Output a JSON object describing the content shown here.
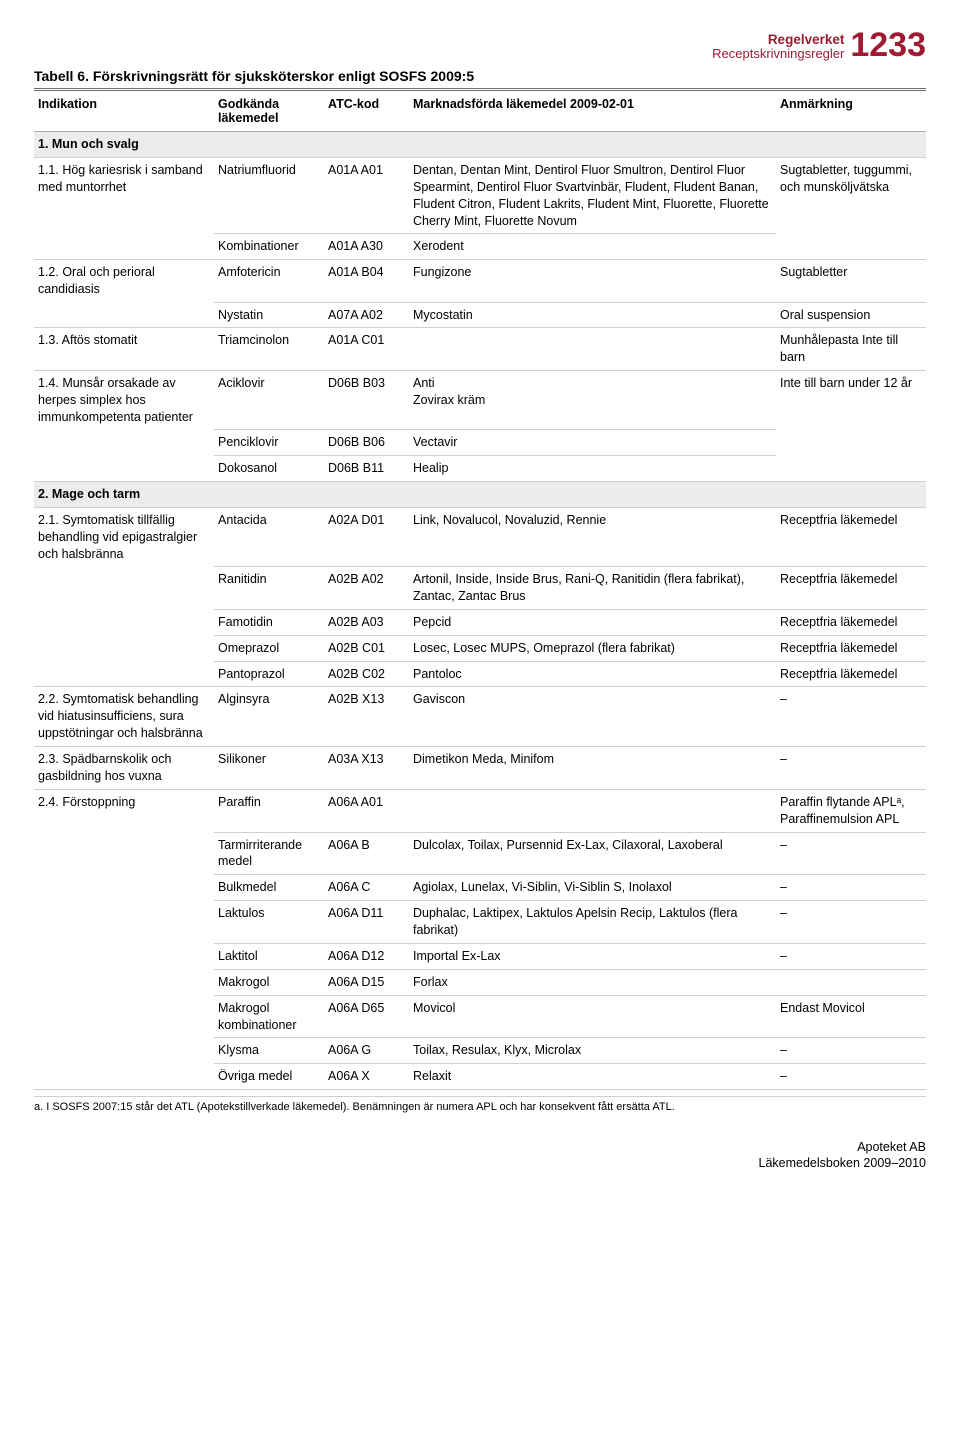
{
  "header": {
    "top": "Regelverket",
    "sub": "Receptskrivningsregler",
    "pageNumber": "1233"
  },
  "caption": "Tabell 6. Förskrivningsrätt för sjuksköterskor enligt SOSFS 2009:5",
  "columns": {
    "c1": "Indikation",
    "c2": "Godkända läkemedel",
    "c3": "ATC-kod",
    "c4": "Marknadsförda läkemedel 2009-02-01",
    "c5": "Anmärkning"
  },
  "rows": [
    {
      "type": "section",
      "label": "1. Mun och svalg"
    },
    {
      "type": "data",
      "spanStart": true,
      "ind": "1.1. Hög kariesrisk i samband med muntorrhet",
      "god": "Natriumfluorid",
      "atc": "A01A A01",
      "mark": "Dentan, Dentan Mint, Dentirol Fluor Smultron, Dentirol Fluor Spearmint, Dentirol Fluor Svartvinbär, Fludent, Fludent Banan, Fludent Citron, Fludent Lakrits, Fludent Mint, Fluorette, Fluorette Cherry Mint, Fluorette Novum",
      "anm": "Sugtabletter, tuggummi, och munsköljvätska",
      "anmSpanStart": true
    },
    {
      "type": "data",
      "spanEnd": true,
      "ind": "",
      "god": "Kombinationer",
      "atc": "A01A A30",
      "mark": "Xerodent",
      "anm": ""
    },
    {
      "type": "data",
      "spanStart": true,
      "ind": "1.2. Oral och perioral candidiasis",
      "god": "Amfotericin",
      "atc": "A01A B04",
      "mark": "Fungizone",
      "anm": "Sugtabletter"
    },
    {
      "type": "data",
      "spanEnd": true,
      "ind": "",
      "god": "Nystatin",
      "atc": "A07A A02",
      "mark": "Mycostatin",
      "anm": "Oral suspension"
    },
    {
      "type": "data",
      "ind": "1.3. Aftös stomatit",
      "god": "Triamcinolon",
      "atc": "A01A C01",
      "mark": "",
      "anm": "Munhålepasta Inte till barn"
    },
    {
      "type": "data",
      "spanStart": true,
      "ind": "1.4. Munsår orsakade av herpes simplex hos immunkompetenta patienter",
      "god": "Aciklovir",
      "atc": "D06B B03",
      "mark": "Anti\nZovirax kräm",
      "anm": "Inte till barn under 12 år",
      "anmSpanStart": true
    },
    {
      "type": "data",
      "spanMid": true,
      "ind": "",
      "god": "Penciklovir",
      "atc": "D06B B06",
      "mark": "Vectavir",
      "anm": "",
      "anmSpanMid": true
    },
    {
      "type": "data",
      "spanEnd": true,
      "ind": "",
      "god": "Dokosanol",
      "atc": "D06B B11",
      "mark": "Healip",
      "anm": ""
    },
    {
      "type": "section",
      "label": "2. Mage och tarm"
    },
    {
      "type": "data",
      "spanStart": true,
      "ind": "2.1. Symtomatisk tillfällig behandling vid epigastralgier och halsbränna",
      "god": "Antacida",
      "atc": "A02A D01",
      "mark": "Link, Novalucol, Novaluzid, Rennie",
      "anm": "Receptfria läkemedel"
    },
    {
      "type": "data",
      "spanMid": true,
      "ind": "",
      "god": "Ranitidin",
      "atc": "A02B A02",
      "mark": "Artonil, Inside, Inside Brus, Rani-Q, Ranitidin (flera fabrikat), Zantac, Zantac Brus",
      "anm": "Receptfria läkemedel"
    },
    {
      "type": "data",
      "spanMid": true,
      "ind": "",
      "god": "Famotidin",
      "atc": "A02B A03",
      "mark": "Pepcid",
      "anm": "Receptfria läkemedel"
    },
    {
      "type": "data",
      "spanMid": true,
      "ind": "",
      "god": "Omeprazol",
      "atc": "A02B C01",
      "mark": "Losec, Losec MUPS, Omeprazol (flera fabrikat)",
      "anm": "Receptfria läkemedel"
    },
    {
      "type": "data",
      "spanEnd": true,
      "ind": "",
      "god": "Pantoprazol",
      "atc": "A02B C02",
      "mark": "Pantoloc",
      "anm": "Receptfria läkemedel"
    },
    {
      "type": "data",
      "ind": "2.2. Symtomatisk behandling vid hiatusinsufficiens, sura uppstötningar och halsbränna",
      "god": "Alginsyra",
      "atc": "A02B X13",
      "mark": "Gaviscon",
      "anm": "–"
    },
    {
      "type": "data",
      "ind": "2.3. Spädbarnskolik och gasbildning hos vuxna",
      "god": "Silikoner",
      "atc": "A03A X13",
      "mark": "Dimetikon Meda, Minifom",
      "anm": "–"
    },
    {
      "type": "data",
      "spanStart": true,
      "ind": "2.4. Förstoppning",
      "god": "Paraffin",
      "atc": "A06A A01",
      "mark": "",
      "anm": "Paraffin flytande APLᵃ, Paraffinemulsion APL"
    },
    {
      "type": "data",
      "spanMid": true,
      "ind": "",
      "god": "Tarmirriterande medel",
      "atc": "A06A B",
      "mark": "Dulcolax, Toilax, Pursennid Ex-Lax, Cilaxoral, Laxoberal",
      "anm": "–"
    },
    {
      "type": "data",
      "spanMid": true,
      "ind": "",
      "god": "Bulkmedel",
      "atc": "A06A C",
      "mark": "Agiolax, Lunelax, Vi-Siblin, Vi-Siblin S, Inolaxol",
      "anm": "–"
    },
    {
      "type": "data",
      "spanMid": true,
      "ind": "",
      "god": "Laktulos",
      "atc": "A06A D11",
      "mark": "Duphalac, Laktipex, Laktulos Apelsin Recip, Laktulos (flera fabrikat)",
      "anm": "–"
    },
    {
      "type": "data",
      "spanMid": true,
      "ind": "",
      "god": "Laktitol",
      "atc": "A06A D12",
      "mark": "Importal Ex-Lax",
      "anm": "–"
    },
    {
      "type": "data",
      "spanMid": true,
      "ind": "",
      "god": "Makrogol",
      "atc": "A06A D15",
      "mark": "Forlax",
      "anm": ""
    },
    {
      "type": "data",
      "spanMid": true,
      "ind": "",
      "god": "Makrogol kombinationer",
      "atc": "A06A D65",
      "mark": "Movicol",
      "anm": "Endast Movicol"
    },
    {
      "type": "data",
      "spanMid": true,
      "ind": "",
      "god": "Klysma",
      "atc": "A06A G",
      "mark": "Toilax, Resulax, Klyx, Microlax",
      "anm": "–"
    },
    {
      "type": "data",
      "spanEnd": true,
      "ind": "",
      "god": "Övriga medel",
      "atc": "A06A X",
      "mark": "Relaxit",
      "anm": "–"
    }
  ],
  "footnote": "a. I SOSFS 2007:15 står det ATL (Apotekstillverkade läkemedel). Benämningen är numera APL och har konsekvent fått ersätta ATL.",
  "footer": {
    "line1": "Apoteket AB",
    "line2": "Läkemedelsboken 2009–2010"
  }
}
